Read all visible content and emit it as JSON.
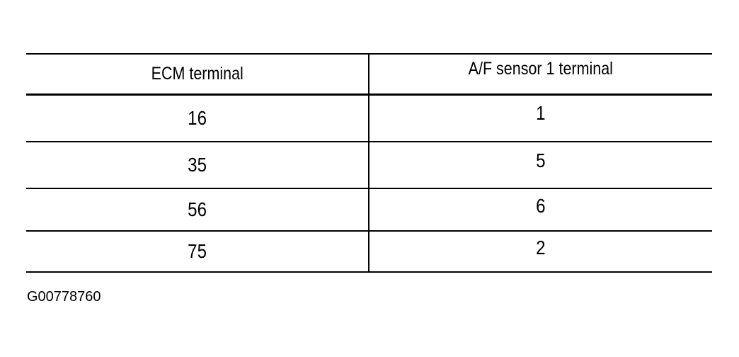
{
  "table": {
    "headers": [
      "ECM terminal",
      "A/F sensor 1 terminal"
    ],
    "rows": [
      [
        "16",
        "1"
      ],
      [
        "35",
        "5"
      ],
      [
        "56",
        "6"
      ],
      [
        "75",
        "2"
      ]
    ]
  },
  "caption": "G00778760"
}
